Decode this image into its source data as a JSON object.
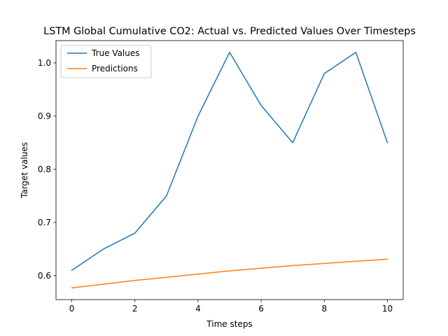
{
  "chart_data": {
    "type": "line",
    "title": "LSTM Global Cumulative CO2: Actual vs. Predicted Values Over Timesteps",
    "xlabel": "Time steps",
    "ylabel": "Target values",
    "xlim": [
      -0.5,
      10.5
    ],
    "ylim": [
      0.555,
      1.042
    ],
    "xticks": [
      0,
      2,
      4,
      6,
      8,
      10
    ],
    "yticks": [
      0.6,
      0.7,
      0.8,
      0.9,
      1.0
    ],
    "ytick_labels": [
      "0.6",
      "0.7",
      "0.8",
      "0.9",
      "1.0"
    ],
    "grid": false,
    "legend_position": "top-left",
    "x": [
      0,
      1,
      2,
      3,
      4,
      5,
      6,
      7,
      8,
      9,
      10
    ],
    "series": [
      {
        "name": "True Values",
        "color": "#1f77b4",
        "values": [
          0.61,
          0.65,
          0.68,
          0.75,
          0.9,
          1.02,
          0.92,
          0.85,
          0.98,
          1.02,
          0.85
        ]
      },
      {
        "name": "Predictions",
        "color": "#ff7f0e",
        "values": [
          0.577,
          0.584,
          0.591,
          0.597,
          0.603,
          0.609,
          0.614,
          0.619,
          0.623,
          0.627,
          0.631
        ]
      }
    ]
  }
}
